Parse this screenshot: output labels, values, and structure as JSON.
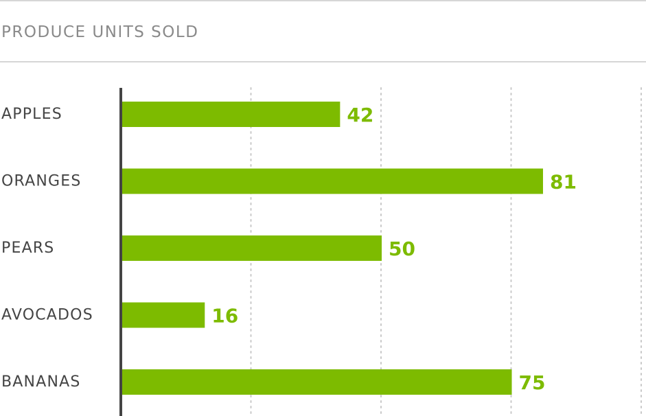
{
  "chart_data": {
    "type": "bar",
    "orientation": "horizontal",
    "title": "PRODUCE UNITS SOLD",
    "xlabel": "",
    "ylabel": "",
    "categories": [
      "APPLES",
      "ORANGES",
      "PEARS",
      "AVOCADOS",
      "BANANAS"
    ],
    "values": [
      42,
      81,
      50,
      16,
      75
    ],
    "xlim": [
      0,
      100
    ],
    "gridlines": [
      25,
      50,
      75,
      100
    ],
    "grid": true,
    "legend": "none",
    "data_labels": true,
    "colors": {
      "bar": "#7dbb00",
      "value_label": "#7dbb00",
      "axis": "#444444",
      "grid": "#c8c8c8",
      "category_label": "#444444",
      "title": "#8a8a8a"
    }
  }
}
